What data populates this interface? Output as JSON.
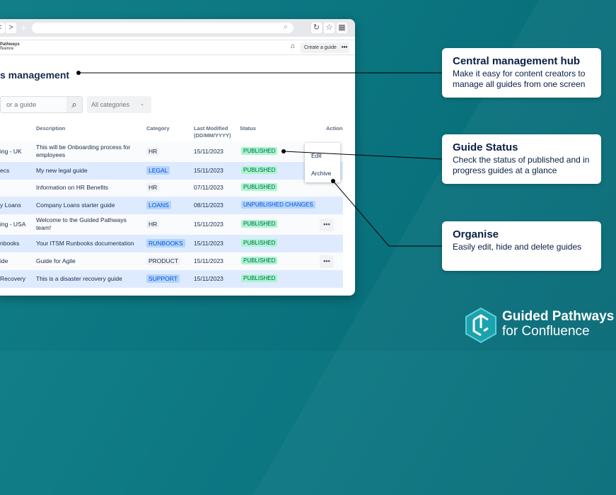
{
  "browser": {
    "back": "<",
    "forward": ">",
    "new_tab": "+",
    "search_icon": "search-icon",
    "reload_icon": "reload-icon",
    "star_icon": "star-icon",
    "grid_icon": "grid-icon"
  },
  "app": {
    "logo_line1": "Pathways",
    "logo_line2": "fluence",
    "create_label": "Create a guide",
    "more_label": "•••"
  },
  "page": {
    "title": "s management",
    "search_placeholder": "or a guide",
    "category_select": "All categories"
  },
  "table": {
    "headers": [
      "Description",
      "Category",
      "Last Modified (DD/MM/YYYY)",
      "Status",
      "Action"
    ],
    "rows": [
      {
        "name": "ing - UK",
        "description": "This will be Onboarding process for employees",
        "category": "HR",
        "cat_blue": false,
        "date": "15/11/2023",
        "status": "PUBLISHED",
        "action": "dark"
      },
      {
        "name": "ecs",
        "description": "My new legal guide",
        "category": "LEGAL",
        "cat_blue": true,
        "date": "15/11/2023",
        "status": "PUBLISHED",
        "action": ""
      },
      {
        "name": "",
        "description": "Information on HR Benefits",
        "category": "HR",
        "cat_blue": false,
        "date": "07/11/2023",
        "status": "PUBLISHED",
        "action": ""
      },
      {
        "name": "y Loans",
        "description": "Company Loans starter guide",
        "category": "LOANS",
        "cat_blue": true,
        "date": "08/11/2023",
        "status": "UNPUBLISHED CHANGES",
        "action": ""
      },
      {
        "name": "ing - USA",
        "description": "Welcome to the Guided Pathways team!",
        "category": "HR",
        "cat_blue": false,
        "date": "15/11/2023",
        "status": "PUBLISHED",
        "action": "light"
      },
      {
        "name": "nbooks",
        "description": "Your ITSM Runbooks documentation",
        "category": "RUNBOOKS",
        "cat_blue": true,
        "date": "15/11/2023",
        "status": "PUBLISHED",
        "action": ""
      },
      {
        "name": "ide",
        "description": "Guide for Agile",
        "category": "PRODUCT",
        "cat_blue": false,
        "date": "15/11/2023",
        "status": "PUBLISHED",
        "action": "light"
      },
      {
        "name": "Recovery",
        "description": "This is a disaster recovery guide",
        "category": "SUPPORT",
        "cat_blue": true,
        "date": "15/11/2023",
        "status": "PUBLISHED",
        "action": ""
      }
    ]
  },
  "menu": {
    "edit": "Edit",
    "archive": "Archive"
  },
  "callouts": [
    {
      "title": "Central management hub",
      "text": "Make it easy for content creators to manage all guides from one screen"
    },
    {
      "title": "Guide Status",
      "text": "Check the status of published and in progress guides at a glance"
    },
    {
      "title": "Organise",
      "text": "Easily edit, hide and delete guides"
    }
  ],
  "brand": {
    "line1": "Guided Pathways",
    "line2": "for Confluence"
  },
  "colors": {
    "teal": "#0b7580",
    "navy": "#0a1f44",
    "published": "#abf5d1",
    "blue_tag": "#b3d4ff"
  }
}
